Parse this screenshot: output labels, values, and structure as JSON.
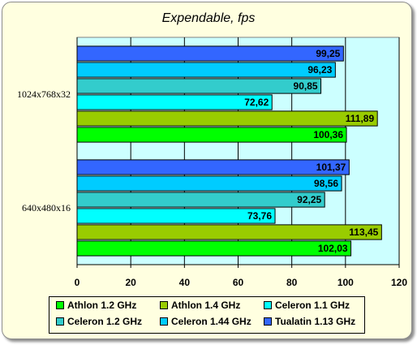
{
  "chart_data": {
    "type": "bar",
    "orientation": "horizontal",
    "title": "Expendable, fps",
    "categories": [
      "1024x768x32",
      "640x480x16"
    ],
    "xlim": [
      0,
      120
    ],
    "xticks": [
      "0",
      "20",
      "40",
      "60",
      "80",
      "100",
      "120"
    ],
    "grid": true,
    "legend_position": "bottom",
    "series": [
      {
        "name": "Athlon 1.2 GHz",
        "color": "#00ff00",
        "values": [
          100.36,
          102.03
        ],
        "labels": [
          "100,36",
          "102,03"
        ]
      },
      {
        "name": "Athlon 1.4 GHz",
        "color": "#99cc00",
        "values": [
          111.89,
          113.45
        ],
        "labels": [
          "111,89",
          "113,45"
        ]
      },
      {
        "name": "Celeron 1.1 GHz",
        "color": "#00ffff",
        "values": [
          72.62,
          73.76
        ],
        "labels": [
          "72,62",
          "73,76"
        ]
      },
      {
        "name": "Celeron 1.2 GHz",
        "color": "#33cccc",
        "values": [
          90.85,
          92.25
        ],
        "labels": [
          "90,85",
          "92,25"
        ]
      },
      {
        "name": "Celeron 1.44 GHz",
        "color": "#00ccff",
        "values": [
          96.23,
          98.56
        ],
        "labels": [
          "96,23",
          "98,56"
        ]
      },
      {
        "name": "Tualatin 1.13 GHz",
        "color": "#3366ff",
        "values": [
          99.25,
          101.37
        ],
        "labels": [
          "99,25",
          "101,37"
        ]
      }
    ]
  }
}
